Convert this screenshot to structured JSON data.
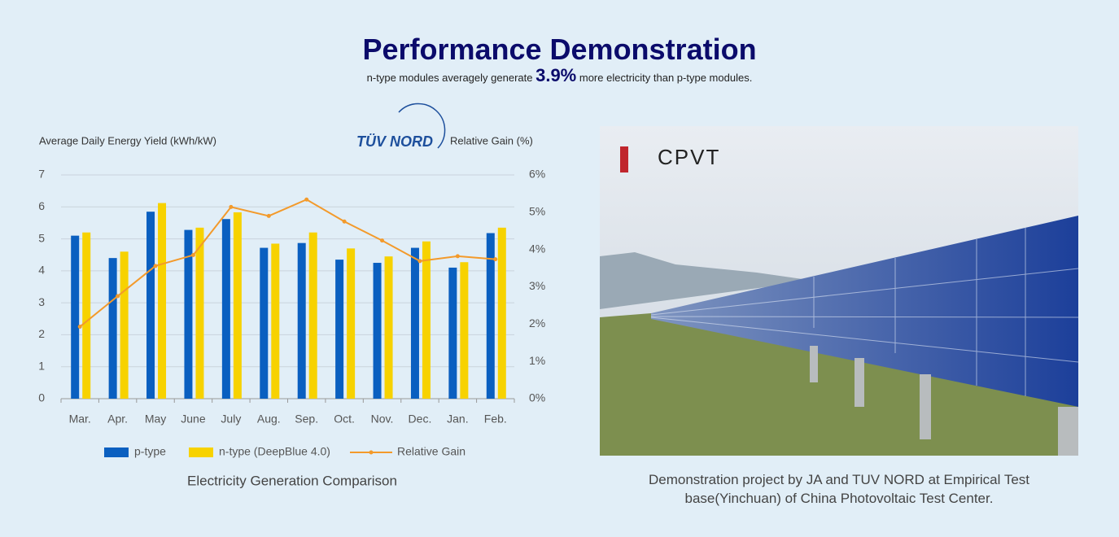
{
  "header": {
    "title": "Performance Demonstration",
    "subtitle_before": "n-type modules averagely generate",
    "highlight": "3.9%",
    "subtitle_after": "more electricity than p-type modules."
  },
  "chart_data": {
    "type": "bar",
    "y_label": "Average Daily Energy Yield  (kWh/kW)",
    "y2_label": "Relative Gain  (%)",
    "logo": "TÜV NORD",
    "caption": "Electricity Generation Comparison",
    "categories": [
      "Mar.",
      "Apr.",
      "May",
      "June",
      "July",
      "Aug.",
      "Sep.",
      "Oct.",
      "Nov.",
      "Dec.",
      "Jan.",
      "Feb."
    ],
    "series": [
      {
        "name": "p-type",
        "color": "#0a5fc0",
        "values": [
          5.1,
          4.4,
          5.85,
          5.28,
          5.62,
          4.72,
          4.87,
          4.35,
          4.25,
          4.72,
          4.1,
          5.18
        ]
      },
      {
        "name": "n-type (DeepBlue 4.0)",
        "color": "#f7d200",
        "values": [
          5.2,
          4.6,
          6.12,
          5.35,
          5.83,
          4.85,
          5.2,
          4.7,
          4.45,
          4.92,
          4.27,
          5.35
        ]
      },
      {
        "name": "Relative Gain",
        "color": "#f39a2b",
        "type": "line",
        "axis": "y2",
        "values": [
          1.93,
          2.75,
          3.56,
          3.85,
          5.14,
          4.9,
          5.34,
          4.75,
          4.24,
          3.69,
          3.82,
          3.74
        ]
      }
    ],
    "ylim": [
      0,
      7
    ],
    "yticks": [
      0,
      1,
      2,
      3,
      4,
      5,
      6,
      7
    ],
    "y2lim": [
      0,
      6
    ],
    "y2ticks": [
      {
        "value": 0,
        "label": "0%"
      },
      {
        "value": 1,
        "label": "1%"
      },
      {
        "value": 2,
        "label": "2%"
      },
      {
        "value": 3,
        "label": "3%"
      },
      {
        "value": 4,
        "label": "4%"
      },
      {
        "value": 5,
        "label": "5%"
      },
      {
        "value": 6,
        "label": "6%"
      }
    ],
    "grid": true
  },
  "photo": {
    "logo": "CPVT",
    "caption": "Demonstration project by JA and TUV NORD at Empirical Test base(Yinchuan) of China Photovoltaic Test Center."
  }
}
